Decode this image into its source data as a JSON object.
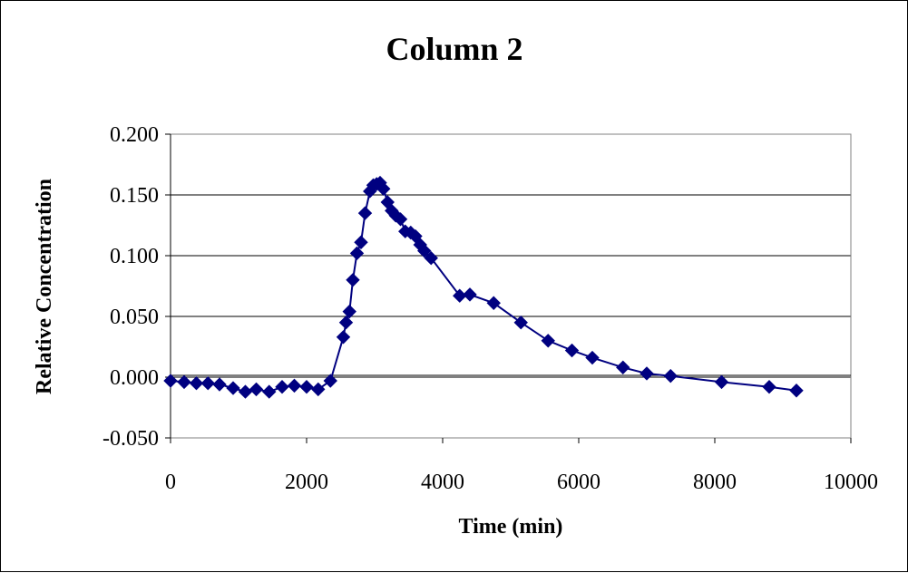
{
  "chart_data": {
    "type": "scatter",
    "title": "Column 2",
    "xlabel": "Time (min)",
    "ylabel": "Relative Concentration",
    "xlim": [
      0,
      10000
    ],
    "ylim": [
      -0.05,
      0.2
    ],
    "x_ticks": [
      "0",
      "2000",
      "4000",
      "6000",
      "8000",
      "10000"
    ],
    "y_ticks": [
      "-0.050",
      "0.000",
      "0.050",
      "0.100",
      "0.150",
      "0.200"
    ],
    "grid": "horizontal major gridlines",
    "legend": "none",
    "series": [
      {
        "marker": "diamond",
        "line": true,
        "color": "#000080",
        "x": [
          0,
          200,
          380,
          550,
          720,
          920,
          1100,
          1260,
          1450,
          1640,
          1820,
          2000,
          2170,
          2350,
          2540,
          2580,
          2630,
          2680,
          2740,
          2800,
          2860,
          2930,
          2980,
          3030,
          3080,
          3130,
          3190,
          3250,
          3310,
          3380,
          3450,
          3530,
          3600,
          3670,
          3730,
          3830,
          4250,
          4400,
          4750,
          5150,
          5550,
          5900,
          6200,
          6650,
          7000,
          7350,
          8100,
          8800,
          9200
        ],
        "y": [
          -0.003,
          -0.004,
          -0.005,
          -0.005,
          -0.006,
          -0.009,
          -0.012,
          -0.01,
          -0.012,
          -0.008,
          -0.007,
          -0.008,
          -0.01,
          -0.003,
          0.033,
          0.045,
          0.054,
          0.08,
          0.102,
          0.111,
          0.135,
          0.153,
          0.158,
          0.159,
          0.16,
          0.155,
          0.144,
          0.137,
          0.133,
          0.13,
          0.12,
          0.119,
          0.116,
          0.109,
          0.104,
          0.098,
          0.067,
          0.068,
          0.061,
          0.045,
          0.03,
          0.022,
          0.016,
          0.008,
          0.003,
          0.001,
          -0.004,
          -0.008,
          -0.011
        ]
      }
    ]
  }
}
